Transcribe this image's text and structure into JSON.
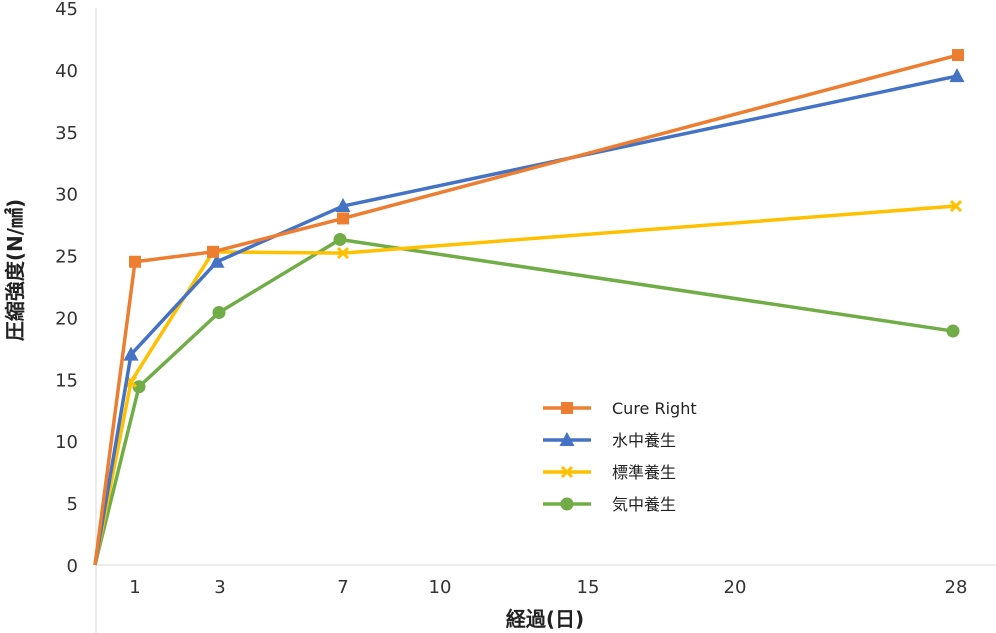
{
  "chart_data": {
    "type": "line",
    "xlabel": "経過(日)",
    "ylabel": "圧縮強度(N/㎟)",
    "ylim": [
      0,
      45
    ],
    "yticks": [
      "0",
      "5",
      "10",
      "15",
      "20",
      "25",
      "30",
      "35",
      "40",
      "45"
    ],
    "xticks": [
      "1",
      "3",
      "7",
      "10",
      "15",
      "20",
      "28"
    ],
    "grid": false,
    "legend_position": "right-center",
    "series": [
      {
        "name": "Cure Right",
        "color": "#ED7D31",
        "marker": "square",
        "points": [
          {
            "x": "0",
            "y": 0
          },
          {
            "x": "1",
            "y": 24.5
          },
          {
            "x": "3",
            "y": 25.3
          },
          {
            "x": "7",
            "y": 28
          },
          {
            "x": "28",
            "y": 41.2
          }
        ]
      },
      {
        "name": "水中養生",
        "color": "#4472C4",
        "marker": "triangle",
        "points": [
          {
            "x": "0",
            "y": 0
          },
          {
            "x": "1",
            "y": 17
          },
          {
            "x": "3",
            "y": 24.5
          },
          {
            "x": "7",
            "y": 29
          },
          {
            "x": "28",
            "y": 39.5
          }
        ]
      },
      {
        "name": "標準養生",
        "color": "#FFC000",
        "marker": "x",
        "points": [
          {
            "x": "0",
            "y": 0
          },
          {
            "x": "1",
            "y": 14.8
          },
          {
            "x": "3",
            "y": 25.3
          },
          {
            "x": "7",
            "y": 25.2
          },
          {
            "x": "28",
            "y": 29
          }
        ]
      },
      {
        "name": "気中養生",
        "color": "#70AD47",
        "marker": "circle",
        "points": [
          {
            "x": "0",
            "y": 0
          },
          {
            "x": "1",
            "y": 14.4
          },
          {
            "x": "3",
            "y": 20.4
          },
          {
            "x": "7",
            "y": 26.3
          },
          {
            "x": "28",
            "y": 18.9
          }
        ]
      }
    ]
  }
}
